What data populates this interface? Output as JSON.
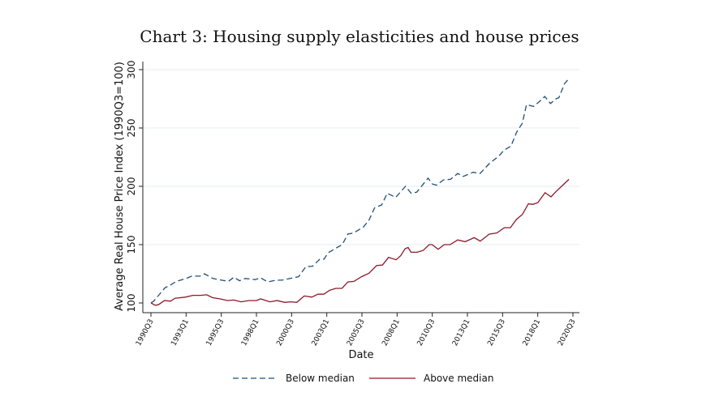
{
  "chart_data": {
    "type": "line",
    "title": "Chart 3: Housing supply elasticities and house prices",
    "xlabel": "Date",
    "ylabel": "Average Real House Price Index (1990Q3=100)",
    "ylim": [
      100,
      300
    ],
    "xlim": [
      1990.5,
      2020.5
    ],
    "yticks": [
      100,
      150,
      200,
      250,
      300
    ],
    "xticks": [
      {
        "label": "1990Q3",
        "x": 1990.5
      },
      {
        "label": "1993Q1",
        "x": 1993.0
      },
      {
        "label": "1995Q3",
        "x": 1995.5
      },
      {
        "label": "1998Q1",
        "x": 1998.0
      },
      {
        "label": "2000Q3",
        "x": 2000.5
      },
      {
        "label": "2003Q1",
        "x": 2003.0
      },
      {
        "label": "2005Q3",
        "x": 2005.5
      },
      {
        "label": "2008Q1",
        "x": 2008.0
      },
      {
        "label": "2010Q3",
        "x": 2010.5
      },
      {
        "label": "2013Q1",
        "x": 2013.0
      },
      {
        "label": "2015Q3",
        "x": 2015.5
      },
      {
        "label": "2018Q1",
        "x": 2018.0
      },
      {
        "label": "2020Q3",
        "x": 2020.5
      }
    ],
    "grid": true,
    "legend_position": "bottom",
    "series": [
      {
        "name": "Below median",
        "color": "#1f4e79",
        "dash": true,
        "x": [
          1990.5,
          1990.7,
          1991.5,
          1991.9,
          1992.3,
          1993.0,
          1993.4,
          1994.0,
          1994.3,
          1994.9,
          1996.0,
          1996.4,
          1996.8,
          1997.2,
          1997.9,
          1998.3,
          1998.8,
          1999.4,
          1999.8,
          2000.4,
          2001.0,
          2001.5,
          2002.0,
          2002.5,
          2002.8,
          2003.1,
          2003.8,
          2004.1,
          2004.5,
          2004.9,
          2005.6,
          2006.0,
          2006.4,
          2006.9,
          2007.3,
          2007.9,
          2008.6,
          2009.0,
          2009.4,
          2010.2,
          2010.5,
          2010.8,
          2011.3,
          2011.8,
          2012.3,
          2012.7,
          2013.4,
          2013.9,
          2014.6,
          2015.2,
          2015.6,
          2016.1,
          2016.5,
          2016.9,
          2017.2,
          2017.7,
          2018.1,
          2018.5,
          2018.9,
          2019.3,
          2019.5,
          2019.9,
          2020.2
        ],
        "y": [
          100,
          101.6,
          113,
          115.5,
          118.5,
          121,
          123,
          123,
          125,
          121,
          118.5,
          122,
          119,
          121,
          120,
          121.5,
          118,
          119.5,
          119.5,
          121,
          122.5,
          131,
          131.5,
          137.5,
          137.5,
          143,
          148,
          150,
          159,
          160,
          165,
          171,
          181.5,
          184,
          194,
          190.5,
          200,
          194,
          195,
          207,
          202,
          201,
          205.5,
          206,
          211,
          208.5,
          212,
          211,
          220,
          225.5,
          231,
          234.5,
          246.5,
          254,
          270,
          268.5,
          272.5,
          277,
          271,
          275,
          276,
          288,
          292
        ]
      },
      {
        "name": "Above median",
        "color": "#8b1a2b",
        "dash": false,
        "x": [
          1990.5,
          1990.82,
          1991.03,
          1991.46,
          1991.89,
          1992.21,
          1992.96,
          1993.49,
          1994.03,
          1994.46,
          1994.88,
          1995.42,
          1995.95,
          1996.38,
          1996.91,
          1997.45,
          1997.98,
          1998.3,
          1998.95,
          1999.48,
          2000.01,
          2000.44,
          2000.87,
          2001.4,
          2001.94,
          2002.37,
          2002.79,
          2003.22,
          2003.65,
          2004.08,
          2004.5,
          2004.93,
          2005.47,
          2006.0,
          2006.54,
          2006.96,
          2007.39,
          2007.93,
          2008.25,
          2008.57,
          2008.78,
          2008.99,
          2009.42,
          2009.85,
          2010.28,
          2010.49,
          2010.92,
          2011.35,
          2011.77,
          2012.31,
          2012.84,
          2013.48,
          2013.91,
          2014.55,
          2015.09,
          2015.62,
          2016.05,
          2016.48,
          2016.91,
          2017.33,
          2017.65,
          2018.0,
          2018.52,
          2018.94,
          2019.26,
          2019.69,
          2020.22
        ],
        "y": [
          100,
          98,
          98.5,
          102,
          101.5,
          104,
          105,
          106.5,
          106.5,
          107,
          104.5,
          103.5,
          102,
          102.5,
          101,
          102,
          102,
          103.5,
          101,
          102,
          100.5,
          101,
          100.5,
          106,
          105,
          107.5,
          107.5,
          111,
          112.5,
          112.5,
          118,
          118.5,
          122.5,
          125.5,
          132,
          132.5,
          139,
          137,
          140.5,
          146.5,
          147.5,
          143.5,
          143.5,
          145,
          150,
          150,
          146,
          150,
          150,
          154,
          152.5,
          156,
          153,
          159,
          160,
          164.5,
          164.5,
          171.5,
          176,
          185,
          184.5,
          186,
          194.5,
          191,
          195,
          200,
          206
        ]
      }
    ]
  }
}
